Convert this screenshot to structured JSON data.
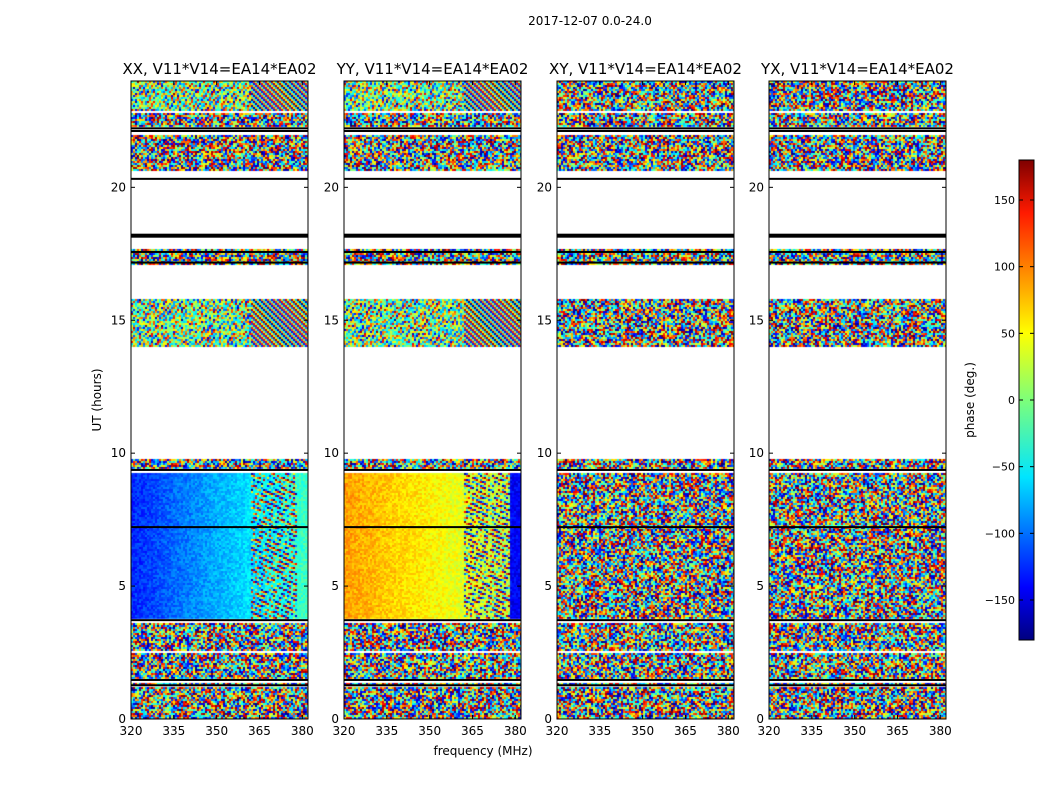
{
  "chart_data": {
    "type": "heatmap",
    "suptitle": "2017-12-07 0.0-24.0",
    "xlabel": "frequency (MHz)",
    "ylabel": "UT (hours)",
    "xlim": [
      320,
      382
    ],
    "ylim": [
      0,
      24
    ],
    "xticks": [
      320,
      335,
      350,
      365,
      380
    ],
    "yticks": [
      0,
      5,
      10,
      15,
      20
    ],
    "panels": [
      {
        "title": "XX, V11*V14=EA14*EA02",
        "pattern": "xx"
      },
      {
        "title": "YY, V11*V14=EA14*EA02",
        "pattern": "yy"
      },
      {
        "title": "XY, V11*V14=EA14*EA02",
        "pattern": "noise"
      },
      {
        "title": "YX, V11*V14=EA14*EA02",
        "pattern": "noise"
      }
    ],
    "data_time_ranges_hours": [
      [
        0.0,
        1.2
      ],
      [
        1.3,
        1.4
      ],
      [
        1.5,
        2.5
      ],
      [
        2.6,
        3.6
      ],
      [
        3.8,
        9.3
      ],
      [
        9.4,
        9.8
      ],
      [
        14.0,
        15.8
      ],
      [
        17.1,
        17.7
      ],
      [
        20.6,
        22.0
      ],
      [
        22.3,
        22.8
      ],
      [
        22.9,
        24.0
      ]
    ],
    "flag_lines_hours": [
      1.25,
      1.45,
      3.7,
      7.2,
      9.35,
      17.15,
      17.55,
      18.2,
      20.3,
      22.1,
      22.2
    ],
    "colorbar": {
      "label": "phase (deg.)",
      "range": [
        -180,
        180
      ],
      "ticks": [
        150,
        100,
        50,
        0,
        -50,
        -100,
        -150
      ],
      "tick_labels": [
        "150",
        "100",
        "50",
        "0",
        "−50",
        "−100",
        "−150"
      ],
      "colormap": "jet"
    }
  }
}
